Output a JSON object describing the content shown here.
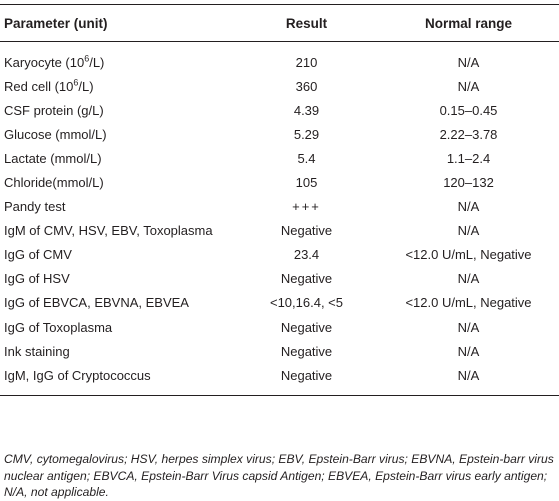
{
  "table": {
    "headers": {
      "parameter": "Parameter (unit)",
      "result": "Result",
      "normal_range": "Normal range"
    },
    "rows": [
      {
        "parameter_pre": "Karyocyte (10",
        "parameter_sup": "6",
        "parameter_post": "/L)",
        "result": "210",
        "normal_range": "N/A"
      },
      {
        "parameter_pre": "Red cell (10",
        "parameter_sup": "6",
        "parameter_post": "/L)",
        "result": "360",
        "normal_range": "N/A"
      },
      {
        "parameter": "CSF protein (g/L)",
        "result": "4.39",
        "normal_range": "0.15–0.45"
      },
      {
        "parameter": "Glucose (mmol/L)",
        "result": "5.29",
        "normal_range": "2.22–3.78"
      },
      {
        "parameter": "Lactate (mmol/L)",
        "result": "5.4",
        "normal_range": "1.1–2.4"
      },
      {
        "parameter": "Chloride(mmol/L)",
        "result": "105",
        "normal_range": "120–132"
      },
      {
        "parameter": "Pandy test",
        "result": "+++",
        "normal_range": "N/A"
      },
      {
        "parameter": "IgM of CMV, HSV, EBV, Toxoplasma",
        "result": "Negative",
        "normal_range": "N/A"
      },
      {
        "parameter": "IgG of CMV",
        "result": "23.4",
        "normal_range": "<12.0 U/mL, Negative"
      },
      {
        "parameter": "IgG of HSV",
        "result": "Negative",
        "normal_range": "N/A"
      },
      {
        "parameter": "IgG of EBVCA, EBVNA, EBVEA",
        "result": "<10,16.4, <5",
        "normal_range": "<12.0 U/mL, Negative"
      },
      {
        "parameter": "IgG of Toxoplasma",
        "result": "Negative",
        "normal_range": "N/A"
      },
      {
        "parameter": "Ink staining",
        "result": "Negative",
        "normal_range": "N/A"
      },
      {
        "parameter": "IgM, IgG of Cryptococcus",
        "result": "Negative",
        "normal_range": "N/A"
      }
    ]
  },
  "footnote": "CMV, cytomegalovirus; HSV, herpes simplex virus; EBV, Epstein-Barr virus; EBVNA, Epstein-barr virus nuclear antigen; EBVCA, Epstein-Barr Virus capsid Antigen; EBVEA, Epstein-Barr virus early antigen; N/A, not applicable."
}
